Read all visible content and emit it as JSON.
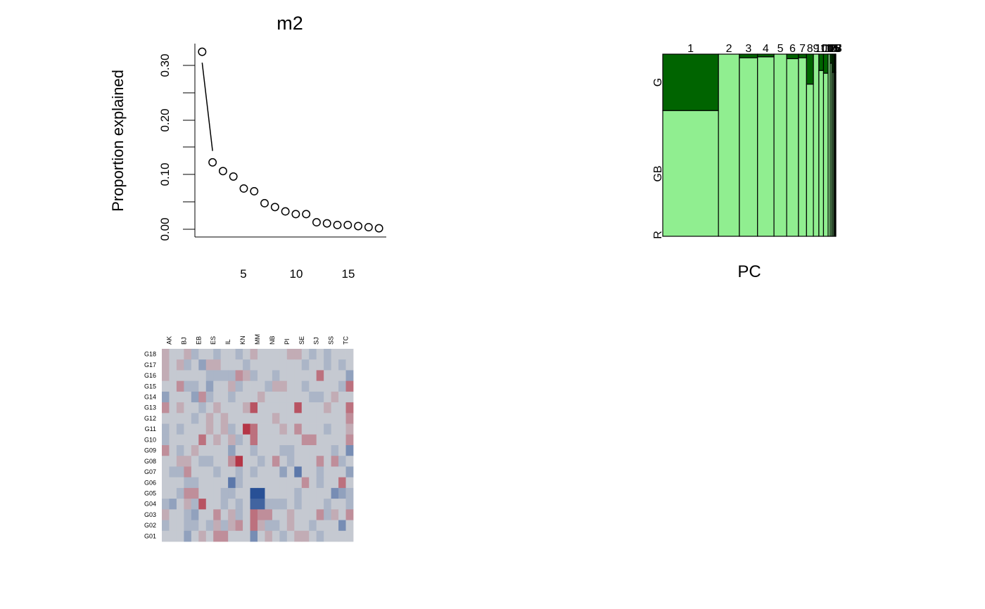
{
  "chart_data": [
    {
      "type": "scatter",
      "title": "m2",
      "xlabel": "",
      "ylabel": "Proportion explained",
      "x_ticks": [
        "5",
        "10",
        "15"
      ],
      "y_ticks": [
        "0.00",
        "0.10",
        "0.20",
        "0.30"
      ],
      "xlim": [
        0.3,
        18.7
      ],
      "ylim": [
        -0.015,
        0.34
      ],
      "x": [
        1,
        2,
        3,
        4,
        5,
        6,
        7,
        8,
        9,
        10,
        11,
        12,
        13,
        14,
        15,
        16,
        17,
        18
      ],
      "values": [
        0.325,
        0.122,
        0.106,
        0.096,
        0.074,
        0.069,
        0.047,
        0.04,
        0.032,
        0.027,
        0.027,
        0.012,
        0.01,
        0.007,
        0.007,
        0.005,
        0.003,
        0.001
      ],
      "line_segment": {
        "from": [
          1,
          0.305
        ],
        "to": [
          2,
          0.143
        ]
      }
    },
    {
      "type": "bar",
      "subtype": "mosaic",
      "xlabel": "PC",
      "ylabel": "",
      "categories": [
        "1",
        "2",
        "3",
        "4",
        "5",
        "6",
        "7",
        "8",
        "9",
        "10",
        "11",
        "12",
        "13",
        "14",
        "15",
        "16",
        "17",
        "18"
      ],
      "widths": [
        0.325,
        0.122,
        0.106,
        0.096,
        0.074,
        0.069,
        0.047,
        0.04,
        0.032,
        0.027,
        0.027,
        0.012,
        0.01,
        0.007,
        0.007,
        0.005,
        0.003,
        0.001
      ],
      "y_levels": [
        "R",
        "GB",
        "G"
      ],
      "series": [
        {
          "name": "R",
          "values": [
            0.0,
            0.0,
            0.0,
            0.0,
            0.0,
            0.0,
            0.0,
            0.0,
            0.0,
            0.0,
            0.0,
            0.0,
            0.0,
            0.0,
            0.0,
            0.0,
            0.0,
            0.0
          ]
        },
        {
          "name": "GB",
          "values": [
            0.69,
            1.0,
            0.98,
            0.985,
            1.0,
            0.975,
            0.98,
            0.835,
            1.0,
            0.91,
            0.895,
            1.0,
            0.95,
            0.9,
            0.9,
            0.9,
            0.9,
            0.9
          ]
        },
        {
          "name": "G",
          "values": [
            0.31,
            0.0,
            0.02,
            0.015,
            0.0,
            0.025,
            0.02,
            0.165,
            0.0,
            0.09,
            0.105,
            0.0,
            0.05,
            0.1,
            0.1,
            0.1,
            0.1,
            0.1
          ]
        }
      ],
      "colors": {
        "GB": "#90ee90",
        "G": "#006400",
        "R": "#8b0000"
      }
    },
    {
      "type": "heatmap",
      "columns": [
        "AK",
        "BJ",
        "EB",
        "ES",
        "IL",
        "KN",
        "MM",
        "NB",
        "PI",
        "SE",
        "SJ",
        "SS",
        "TC"
      ],
      "rows": [
        "G18",
        "G17",
        "G16",
        "G15",
        "G14",
        "G13",
        "G12",
        "G11",
        "G10",
        "G09",
        "G08",
        "G07",
        "G06",
        "G05",
        "G04",
        "G03",
        "G02",
        "G01"
      ],
      "n_cells_x": 26,
      "matrix": [
        [
          1,
          0,
          0,
          1,
          -1,
          0,
          0,
          -1,
          0,
          0,
          -1,
          0,
          1,
          0,
          0,
          0,
          0,
          1,
          1,
          0,
          -1,
          0,
          -1,
          0,
          0,
          0
        ],
        [
          1,
          0,
          1,
          -1,
          0,
          -2,
          1,
          1,
          0,
          0,
          0,
          -1,
          0,
          0,
          0,
          0,
          0,
          0,
          0,
          -1,
          0,
          0,
          -1,
          0,
          -1,
          0
        ],
        [
          1,
          0,
          0,
          0,
          0,
          0,
          -1,
          -1,
          -1,
          -1,
          2,
          1,
          -1,
          0,
          0,
          -1,
          0,
          0,
          0,
          0,
          0,
          3,
          0,
          0,
          0,
          -2
        ],
        [
          0,
          0,
          2,
          -1,
          -1,
          0,
          -2,
          0,
          0,
          1,
          -1,
          0,
          0,
          0,
          -1,
          1,
          1,
          0,
          0,
          -1,
          0,
          0,
          0,
          0,
          -1,
          3
        ],
        [
          -2,
          0,
          0,
          0,
          -2,
          2,
          -1,
          0,
          0,
          -1,
          0,
          0,
          0,
          1,
          0,
          0,
          0,
          0,
          0,
          0,
          -1,
          -1,
          0,
          1,
          0,
          0
        ],
        [
          2,
          0,
          1,
          0,
          0,
          -1,
          0,
          1,
          0,
          0,
          0,
          1,
          4,
          0,
          0,
          0,
          0,
          0,
          4,
          0,
          0,
          0,
          1,
          0,
          0,
          3
        ],
        [
          0,
          0,
          0,
          0,
          -1,
          0,
          1,
          0,
          1,
          0,
          0,
          0,
          0,
          0,
          0,
          1,
          0,
          0,
          0,
          0,
          0,
          0,
          0,
          0,
          0,
          2
        ],
        [
          -1,
          0,
          -1,
          0,
          0,
          0,
          1,
          0,
          1,
          -1,
          0,
          5,
          3,
          0,
          0,
          0,
          1,
          0,
          2,
          0,
          0,
          0,
          -1,
          0,
          0,
          1
        ],
        [
          -1,
          0,
          0,
          0,
          0,
          3,
          0,
          1,
          0,
          1,
          -1,
          0,
          3,
          0,
          0,
          0,
          0,
          0,
          0,
          2,
          2,
          0,
          0,
          0,
          0,
          2
        ],
        [
          2,
          0,
          -1,
          0,
          1,
          0,
          0,
          0,
          0,
          -2,
          0,
          0,
          -1,
          0,
          0,
          0,
          -1,
          -1,
          0,
          0,
          0,
          0,
          0,
          -1,
          0,
          -3
        ],
        [
          0,
          0,
          1,
          1,
          0,
          -1,
          -1,
          0,
          0,
          2,
          5,
          0,
          0,
          -1,
          0,
          2,
          0,
          -1,
          0,
          0,
          0,
          2,
          0,
          2,
          -1,
          0
        ],
        [
          0,
          -1,
          -1,
          2,
          0,
          0,
          0,
          -1,
          0,
          0,
          -1,
          0,
          -1,
          0,
          0,
          0,
          -2,
          0,
          -4,
          0,
          0,
          -1,
          0,
          0,
          0,
          -2
        ],
        [
          0,
          0,
          0,
          -1,
          -1,
          0,
          0,
          0,
          0,
          -4,
          -1,
          0,
          0,
          0,
          0,
          0,
          0,
          0,
          0,
          2,
          0,
          -1,
          0,
          0,
          3,
          0
        ],
        [
          0,
          0,
          -1,
          2,
          2,
          0,
          0,
          0,
          -1,
          -1,
          0,
          0,
          -6,
          -6,
          0,
          0,
          0,
          0,
          -1,
          0,
          0,
          0,
          0,
          -3,
          -2,
          -1
        ],
        [
          -1,
          -2,
          0,
          1,
          -1,
          4,
          0,
          0,
          -1,
          0,
          -1,
          0,
          -5,
          -5,
          -1,
          -1,
          -1,
          0,
          -1,
          0,
          0,
          0,
          -1,
          0,
          0,
          -1
        ],
        [
          1,
          0,
          0,
          -1,
          -2,
          0,
          0,
          2,
          0,
          1,
          -1,
          0,
          3,
          2,
          2,
          0,
          0,
          1,
          0,
          0,
          0,
          2,
          -1,
          1,
          0,
          2
        ],
        [
          -1,
          0,
          0,
          -1,
          -1,
          0,
          -1,
          1,
          -1,
          1,
          2,
          0,
          3,
          1,
          -1,
          -1,
          0,
          1,
          0,
          0,
          -1,
          0,
          0,
          0,
          -3,
          0
        ],
        [
          0,
          0,
          0,
          -2,
          0,
          1,
          0,
          2,
          2,
          0,
          0,
          0,
          -3,
          0,
          1,
          0,
          -1,
          0,
          1,
          1,
          0,
          -1,
          0,
          0,
          0,
          0
        ]
      ]
    }
  ]
}
